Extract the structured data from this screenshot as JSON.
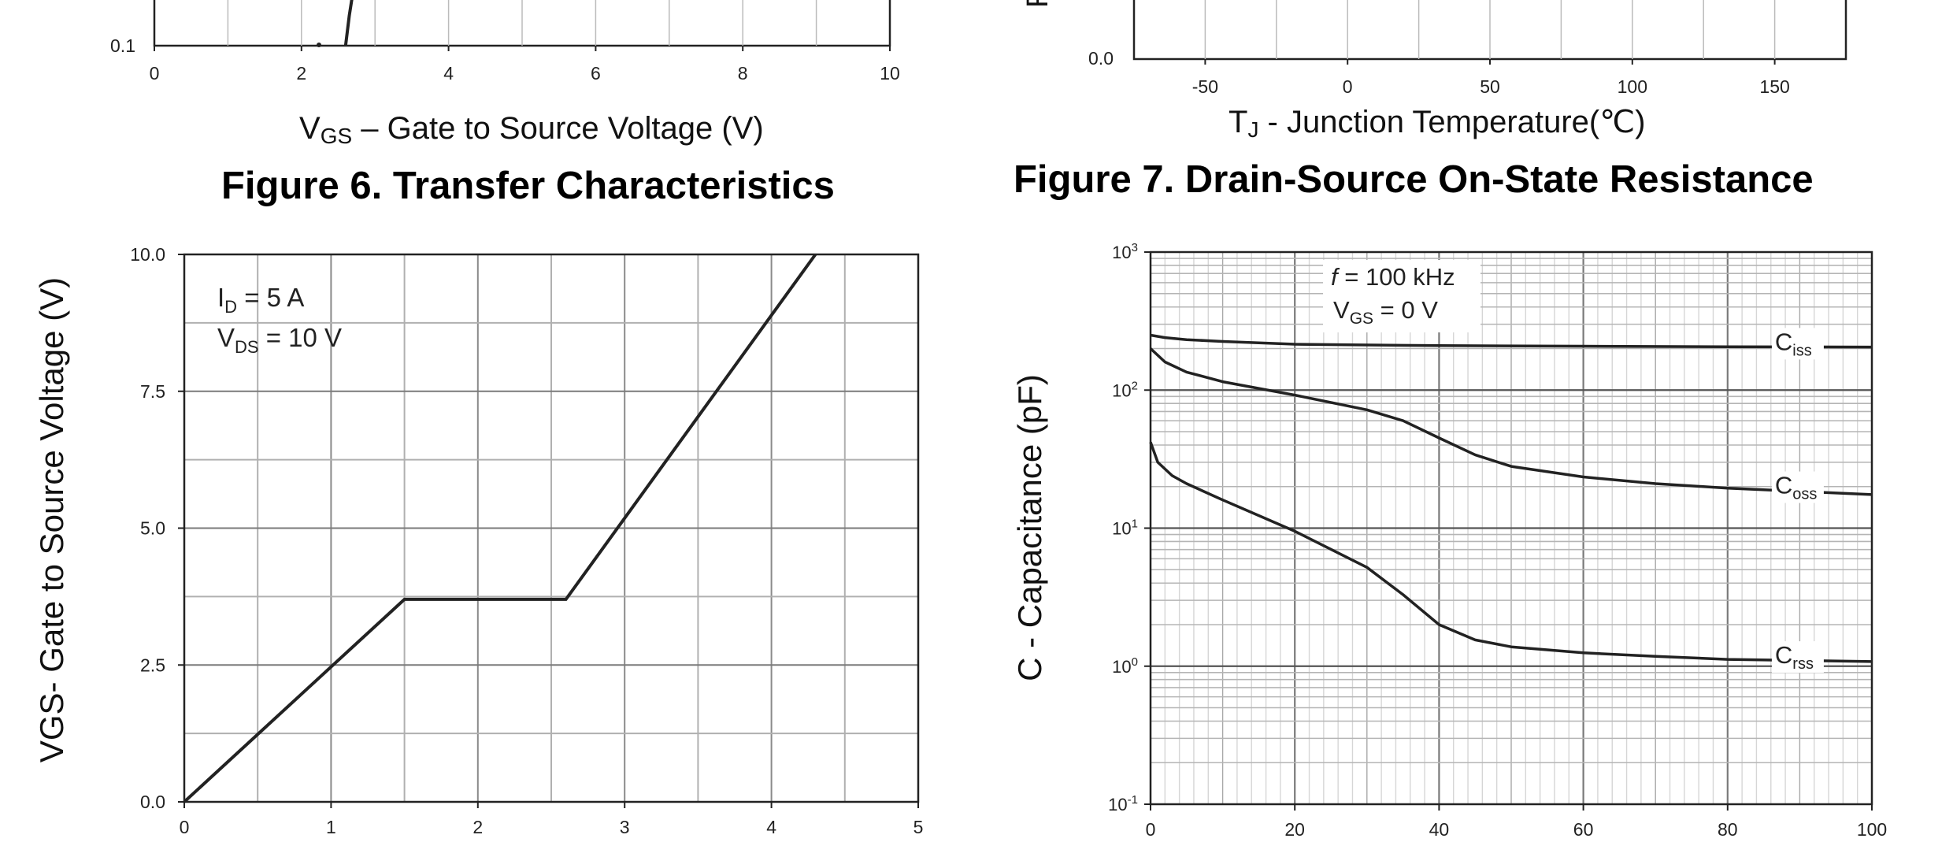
{
  "top_left": {
    "xlabel_main": "V",
    "xlabel_sub": "GS",
    "xlabel_rest": " – Gate to Source Voltage (V)",
    "figure_title": "Figure 6. Transfer Characteristics",
    "y_visible_tick": "0.1",
    "x_ticks": [
      "0",
      "2",
      "4",
      "6",
      "8",
      "10"
    ]
  },
  "top_right": {
    "ylabel_fragment": "R",
    "xlabel_main": "T",
    "xlabel_sub": "J",
    "xlabel_rest": " - Junction Temperature(℃)",
    "figure_title": "Figure 7. Drain-Source On-State Resistance",
    "y_visible_tick": "0.0",
    "x_ticks": [
      "-50",
      "0",
      "50",
      "100",
      "150"
    ]
  },
  "chart_data": [
    {
      "type": "line",
      "title": "Figure 6. Transfer Characteristics",
      "xlabel": "VGS – Gate to Source Voltage (V)",
      "x_ticks": [
        0,
        2,
        4,
        6,
        8,
        10
      ],
      "xlim": [
        0,
        10
      ],
      "y_visible_ticks": [
        0.1
      ],
      "series": [
        {
          "x": [
            2.6,
            2.65,
            2.7
          ],
          "y": [
            0.1,
            0.3,
            1.0
          ]
        }
      ],
      "grid": true
    },
    {
      "type": "line",
      "title": "Figure 7. Drain-Source On-State Resistance",
      "xlabel": "TJ - Junction Temperature(℃)",
      "x_ticks": [
        -50,
        0,
        50,
        100,
        150
      ],
      "xlim": [
        -75,
        175
      ],
      "y_visible_ticks": [
        0.0
      ],
      "series": [],
      "grid": true
    },
    {
      "type": "line",
      "ylabel": "VGS- Gate to Source Voltage (V)",
      "xlim": [
        0,
        5
      ],
      "ylim": [
        0,
        10
      ],
      "x_ticks": [
        "0",
        "1",
        "2",
        "3",
        "4",
        "5"
      ],
      "y_ticks": [
        "0.0",
        "2.5",
        "5.0",
        "7.5",
        "10.0"
      ],
      "annotations": [
        {
          "main": "I",
          "sub": "D",
          "rest": " = 5 A"
        },
        {
          "main": "V",
          "sub": "DS",
          "rest": " = 10 V"
        }
      ],
      "series": [
        {
          "x": [
            0,
            1.5,
            2.6,
            4.3
          ],
          "y": [
            0,
            3.7,
            3.7,
            10
          ]
        }
      ],
      "grid": true
    },
    {
      "type": "line",
      "ylabel": "C - Capacitance (pF)",
      "xlim": [
        0,
        100
      ],
      "ylim": [
        0.1,
        1000
      ],
      "yscale": "log",
      "x_ticks": [
        "0",
        "20",
        "40",
        "60",
        "80",
        "100"
      ],
      "y_ticks": [
        {
          "base": "10",
          "exp": "3",
          "value": 1000
        },
        {
          "base": "10",
          "exp": "2",
          "value": 100
        },
        {
          "base": "10",
          "exp": "1",
          "value": 10
        },
        {
          "base": "10",
          "exp": "0",
          "value": 1
        },
        {
          "base": "10",
          "exp": "-1",
          "value": 0.1
        }
      ],
      "annotations": [
        {
          "main": "f",
          "sub": "",
          "rest": " = 100 kHz"
        },
        {
          "main": "V",
          "sub": "GS",
          "rest": " = 0 V"
        }
      ],
      "series": [
        {
          "name_main": "C",
          "name_sub": "iss",
          "x": [
            0,
            2,
            5,
            10,
            20,
            40,
            60,
            80,
            100
          ],
          "y": [
            250,
            240,
            232,
            225,
            215,
            210,
            208,
            206,
            205
          ]
        },
        {
          "name_main": "C",
          "name_sub": "oss",
          "x": [
            0,
            2,
            5,
            10,
            20,
            30,
            35,
            40,
            45,
            50,
            60,
            70,
            80,
            100
          ],
          "y": [
            200,
            160,
            135,
            115,
            92,
            72,
            60,
            45,
            34,
            28,
            23.5,
            21,
            19.5,
            17.5
          ]
        },
        {
          "name_main": "C",
          "name_sub": "rss",
          "x": [
            0,
            1,
            3,
            5,
            10,
            20,
            30,
            35,
            40,
            45,
            50,
            60,
            70,
            80,
            100
          ],
          "y": [
            42,
            30,
            24,
            21,
            16,
            9.5,
            5.2,
            3.3,
            2.0,
            1.55,
            1.38,
            1.25,
            1.18,
            1.12,
            1.08
          ]
        }
      ],
      "grid": true
    }
  ]
}
